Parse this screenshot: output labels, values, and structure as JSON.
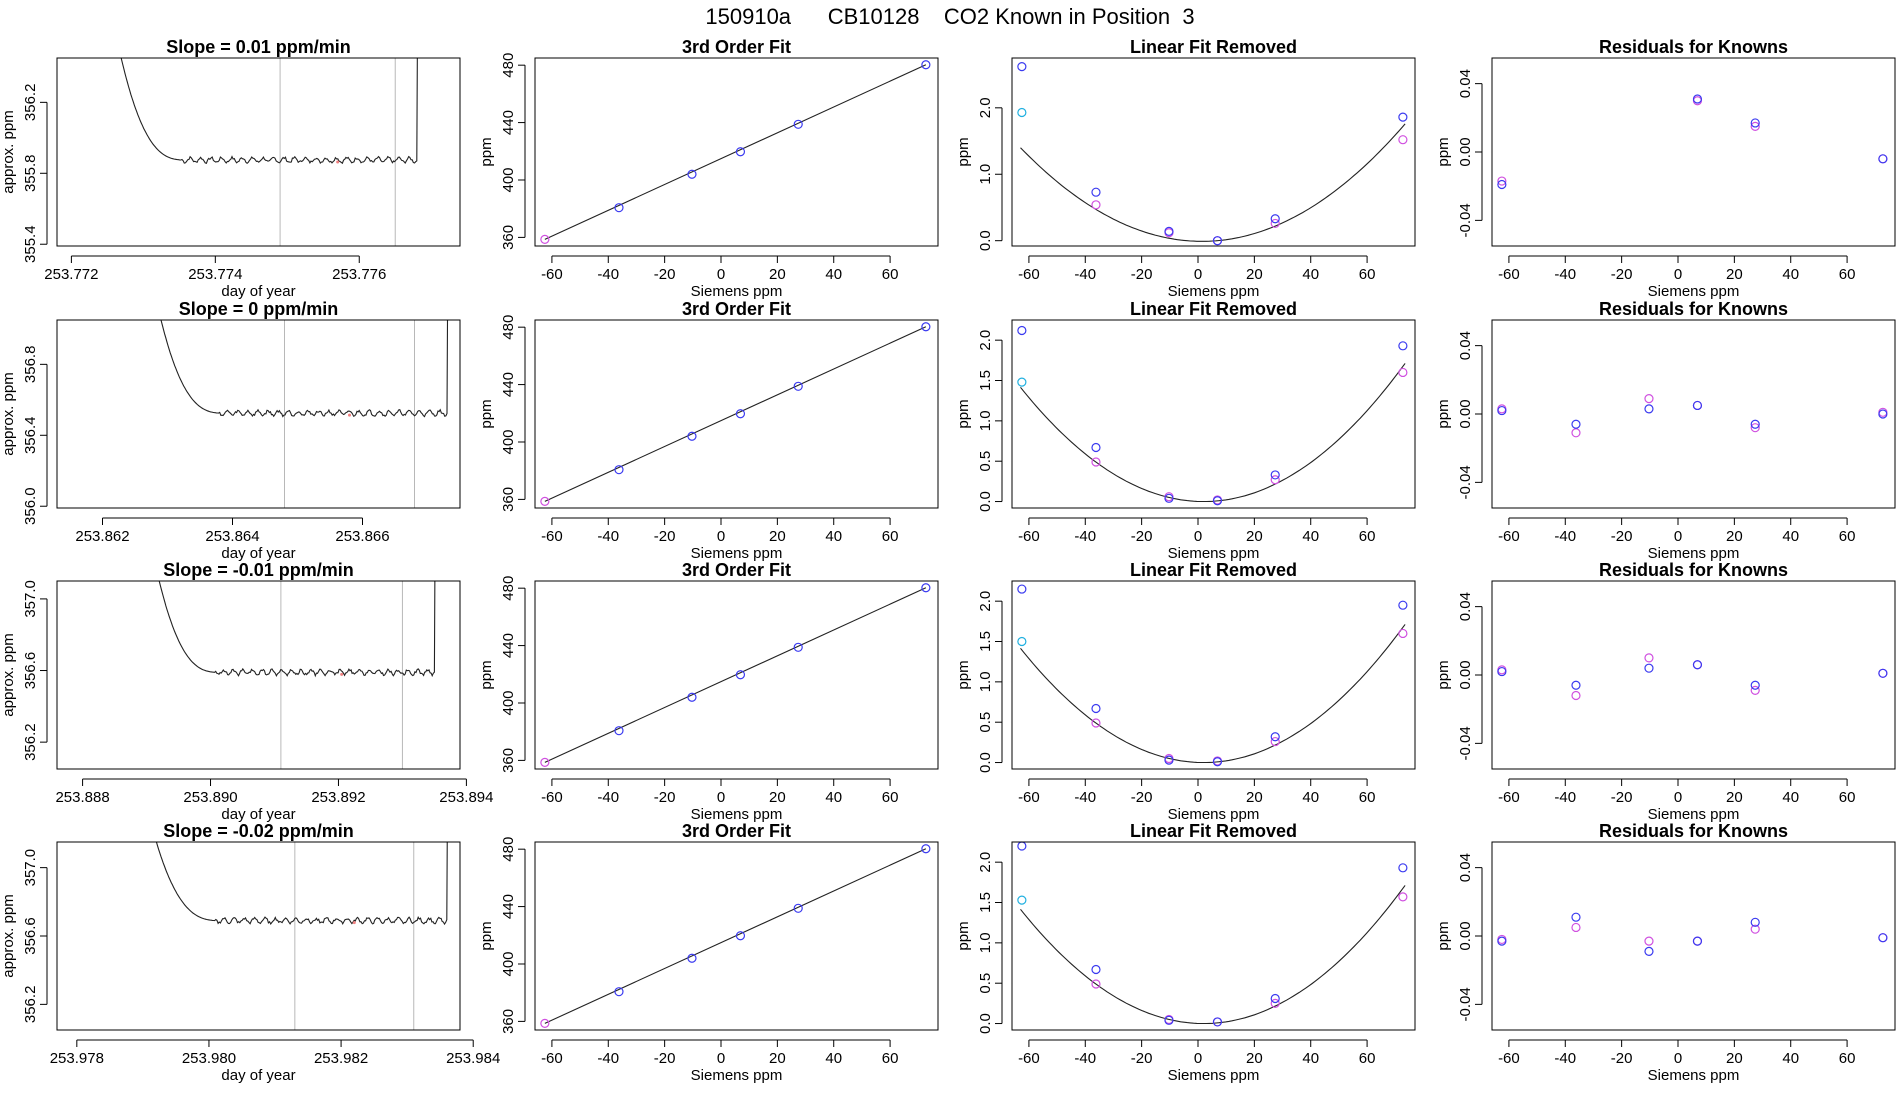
{
  "figure_title": "150910a      CB10128    CO2 Known in Position  3",
  "chart_data": [
    {
      "type": "line",
      "row": 0,
      "col": 0,
      "title": "Slope =  0.01  ppm/min",
      "xlabel": "day of year",
      "ylabel": "approx. ppm",
      "xlim": [
        253.7718,
        253.7774
      ],
      "ylim": [
        355.39,
        356.45
      ],
      "xticks": [
        253.772,
        253.774,
        253.776
      ],
      "yticks": [
        355.4,
        355.8,
        356.2
      ],
      "vlines": [
        253.7749,
        253.7765
      ],
      "baseline": 355.875,
      "trace_start": 253.7726,
      "trace_end": 253.7768,
      "high_value": 356.45
    },
    {
      "type": "scatter",
      "row": 0,
      "col": 1,
      "title": "3rd Order Fit",
      "xlabel": "Siemens ppm",
      "ylabel": "ppm",
      "xlim": [
        -66,
        77
      ],
      "ylim": [
        354,
        485
      ],
      "xticks": [
        -60,
        -40,
        -20,
        0,
        20,
        40,
        60
      ],
      "yticks": [
        360,
        400,
        440,
        480
      ],
      "points_x": [
        -62.5,
        -36.2,
        -10.3,
        6.9,
        27.4,
        72.7
      ],
      "points_y": [
        358.6,
        380.7,
        404.0,
        419.7,
        438.8,
        480.3
      ],
      "fit_line": [
        [
          -62.5,
          358.6
        ],
        [
          72.7,
          480.3
        ]
      ]
    },
    {
      "type": "scatter",
      "row": 0,
      "col": 2,
      "title": "Linear Fit Removed",
      "xlabel": "Siemens ppm",
      "ylabel": "ppm",
      "xlim": [
        -66,
        77
      ],
      "ylim": [
        -0.08,
        2.75
      ],
      "xticks": [
        -60,
        -40,
        -20,
        0,
        20,
        40,
        60
      ],
      "yticks": [
        0.0,
        1.0,
        2.0
      ],
      "curve": {
        "a": 0.00034,
        "h": 1.4,
        "c": -0.01
      },
      "blue_points": [
        [
          -62.5,
          2.62
        ],
        [
          -36.2,
          0.73
        ],
        [
          -10.3,
          0.14
        ],
        [
          6.9,
          0.0
        ],
        [
          27.4,
          0.33
        ],
        [
          72.7,
          1.86
        ]
      ],
      "magenta_points": [
        [
          -36.2,
          0.54
        ],
        [
          -10.3,
          0.12
        ],
        [
          6.9,
          0.0
        ],
        [
          27.4,
          0.26
        ],
        [
          72.7,
          1.52
        ]
      ],
      "cyan_points": [
        [
          -62.5,
          1.93
        ]
      ]
    },
    {
      "type": "scatter",
      "row": 0,
      "col": 3,
      "title": "Residuals for Knowns",
      "xlabel": "Siemens ppm",
      "ylabel": "ppm",
      "xlim": [
        -66,
        77
      ],
      "ylim": [
        -0.055,
        0.055
      ],
      "xticks": [
        -60,
        -40,
        -20,
        0,
        20,
        40,
        60
      ],
      "yticks": [
        -0.04,
        0.0,
        0.04
      ],
      "blue_points": [
        [
          -62.5,
          -0.019
        ],
        [
          6.9,
          0.031
        ],
        [
          27.4,
          0.017
        ],
        [
          72.7,
          -0.004
        ]
      ],
      "magenta_points": [
        [
          -62.5,
          -0.017
        ],
        [
          6.9,
          0.03
        ],
        [
          27.4,
          0.015
        ],
        [
          72.7,
          -0.004
        ]
      ]
    },
    {
      "type": "line",
      "row": 1,
      "col": 0,
      "title": "Slope =  0  ppm/min",
      "xlabel": "day of year",
      "ylabel": "approx. ppm",
      "xlim": [
        253.8613,
        253.8675
      ],
      "ylim": [
        355.99,
        357.05
      ],
      "xticks": [
        253.862,
        253.864,
        253.866
      ],
      "yticks": [
        356.0,
        356.4,
        356.8
      ],
      "vlines": [
        253.8648,
        253.8668
      ],
      "baseline": 356.525,
      "trace_start": 253.8628,
      "trace_end": 253.8673,
      "high_value": 357.05
    },
    {
      "type": "scatter",
      "row": 1,
      "col": 1,
      "title": "3rd Order Fit",
      "xlabel": "Siemens ppm",
      "ylabel": "ppm",
      "xlim": [
        -66,
        77
      ],
      "ylim": [
        354,
        485
      ],
      "xticks": [
        -60,
        -40,
        -20,
        0,
        20,
        40,
        60
      ],
      "yticks": [
        360,
        400,
        440,
        480
      ],
      "points_x": [
        -62.5,
        -36.2,
        -10.3,
        6.9,
        27.4,
        72.7
      ],
      "points_y": [
        358.6,
        380.7,
        404.0,
        419.7,
        438.8,
        480.3
      ],
      "fit_line": [
        [
          -62.5,
          358.6
        ],
        [
          72.7,
          480.3
        ]
      ]
    },
    {
      "type": "scatter",
      "row": 1,
      "col": 2,
      "title": "Linear Fit Removed",
      "xlabel": "Siemens ppm",
      "ylabel": "ppm",
      "xlim": [
        -66,
        77
      ],
      "ylim": [
        -0.08,
        2.25
      ],
      "xticks": [
        -60,
        -40,
        -20,
        0,
        20,
        40,
        60
      ],
      "yticks": [
        0.0,
        0.5,
        1.0,
        1.5,
        2.0
      ],
      "curve": {
        "a": 0.000335,
        "h": 2.0,
        "c": 0.0
      },
      "blue_points": [
        [
          -62.5,
          2.12
        ],
        [
          -36.2,
          0.67
        ],
        [
          -10.3,
          0.04
        ],
        [
          6.9,
          0.01
        ],
        [
          27.4,
          0.33
        ],
        [
          72.7,
          1.93
        ]
      ],
      "magenta_points": [
        [
          -36.2,
          0.49
        ],
        [
          -10.3,
          0.06
        ],
        [
          6.9,
          0.02
        ],
        [
          27.4,
          0.27
        ],
        [
          72.7,
          1.6
        ]
      ],
      "cyan_points": [
        [
          -62.5,
          1.48
        ]
      ]
    },
    {
      "type": "scatter",
      "row": 1,
      "col": 3,
      "title": "Residuals for Knowns",
      "xlabel": "Siemens ppm",
      "ylabel": "ppm",
      "xlim": [
        -66,
        77
      ],
      "ylim": [
        -0.055,
        0.055
      ],
      "xticks": [
        -60,
        -40,
        -20,
        0,
        20,
        40,
        60
      ],
      "yticks": [
        -0.04,
        0.0,
        0.04
      ],
      "blue_points": [
        [
          -62.5,
          0.002
        ],
        [
          -36.2,
          -0.006
        ],
        [
          -10.3,
          0.003
        ],
        [
          6.9,
          0.005
        ],
        [
          27.4,
          -0.006
        ],
        [
          72.7,
          0.0
        ]
      ],
      "magenta_points": [
        [
          -62.5,
          0.003
        ],
        [
          -36.2,
          -0.011
        ],
        [
          -10.3,
          0.009
        ],
        [
          6.9,
          0.005
        ],
        [
          27.4,
          -0.008
        ],
        [
          72.7,
          0.001
        ]
      ]
    },
    {
      "type": "line",
      "row": 2,
      "col": 0,
      "title": "Slope =  -0.01  ppm/min",
      "xlabel": "day of year",
      "ylabel": "approx. ppm",
      "xlim": [
        253.8876,
        253.8939
      ],
      "ylim": [
        356.05,
        357.1
      ],
      "xticks": [
        253.888,
        253.89,
        253.892,
        253.894
      ],
      "yticks": [
        356.2,
        356.6,
        357.0
      ],
      "vlines": [
        253.8911,
        253.893
      ],
      "baseline": 356.59,
      "trace_start": 253.8891,
      "trace_end": 253.8935,
      "high_value": 357.1
    },
    {
      "type": "scatter",
      "row": 2,
      "col": 1,
      "title": "3rd Order Fit",
      "xlabel": "Siemens ppm",
      "ylabel": "ppm",
      "xlim": [
        -66,
        77
      ],
      "ylim": [
        354,
        485
      ],
      "xticks": [
        -60,
        -40,
        -20,
        0,
        20,
        40,
        60
      ],
      "yticks": [
        360,
        400,
        440,
        480
      ],
      "points_x": [
        -62.5,
        -36.2,
        -10.3,
        6.9,
        27.4,
        72.7
      ],
      "points_y": [
        358.6,
        380.7,
        404.0,
        419.7,
        438.8,
        480.3
      ],
      "fit_line": [
        [
          -62.5,
          358.6
        ],
        [
          72.7,
          480.3
        ]
      ]
    },
    {
      "type": "scatter",
      "row": 2,
      "col": 2,
      "title": "Linear Fit Removed",
      "xlabel": "Siemens ppm",
      "ylabel": "ppm",
      "xlim": [
        -66,
        77
      ],
      "ylim": [
        -0.08,
        2.25
      ],
      "xticks": [
        -60,
        -40,
        -20,
        0,
        20,
        40,
        60
      ],
      "yticks": [
        0.0,
        0.5,
        1.0,
        1.5,
        2.0
      ],
      "curve": {
        "a": 0.000335,
        "h": 2.0,
        "c": 0.0
      },
      "blue_points": [
        [
          -62.5,
          2.15
        ],
        [
          -36.2,
          0.67
        ],
        [
          -10.3,
          0.03
        ],
        [
          6.9,
          0.01
        ],
        [
          27.4,
          0.32
        ],
        [
          72.7,
          1.95
        ]
      ],
      "magenta_points": [
        [
          -36.2,
          0.49
        ],
        [
          -10.3,
          0.05
        ],
        [
          6.9,
          0.02
        ],
        [
          27.4,
          0.26
        ],
        [
          72.7,
          1.6
        ]
      ],
      "cyan_points": [
        [
          -62.5,
          1.5
        ]
      ]
    },
    {
      "type": "scatter",
      "row": 2,
      "col": 3,
      "title": "Residuals for Knowns",
      "xlabel": "Siemens ppm",
      "ylabel": "ppm",
      "xlim": [
        -66,
        77
      ],
      "ylim": [
        -0.055,
        0.055
      ],
      "xticks": [
        -60,
        -40,
        -20,
        0,
        20,
        40,
        60
      ],
      "yticks": [
        -0.04,
        0.0,
        0.04
      ],
      "blue_points": [
        [
          -62.5,
          0.002
        ],
        [
          -36.2,
          -0.006
        ],
        [
          -10.3,
          0.004
        ],
        [
          6.9,
          0.006
        ],
        [
          27.4,
          -0.006
        ],
        [
          72.7,
          0.001
        ]
      ],
      "magenta_points": [
        [
          -62.5,
          0.003
        ],
        [
          -36.2,
          -0.012
        ],
        [
          -10.3,
          0.01
        ],
        [
          6.9,
          0.006
        ],
        [
          27.4,
          -0.009
        ],
        [
          72.7,
          0.001
        ]
      ]
    },
    {
      "type": "line",
      "row": 3,
      "col": 0,
      "title": "Slope =  -0.02  ppm/min",
      "xlabel": "day of year",
      "ylabel": "approx. ppm",
      "xlim": [
        253.9777,
        253.9838
      ],
      "ylim": [
        356.05,
        357.15
      ],
      "xticks": [
        253.978,
        253.98,
        253.982,
        253.984
      ],
      "yticks": [
        356.2,
        356.6,
        357.0
      ],
      "vlines": [
        253.9813,
        253.9831
      ],
      "baseline": 356.69,
      "trace_start": 253.9791,
      "trace_end": 253.9836,
      "high_value": 357.15
    },
    {
      "type": "scatter",
      "row": 3,
      "col": 1,
      "title": "3rd Order Fit",
      "xlabel": "Siemens ppm",
      "ylabel": "ppm",
      "xlim": [
        -66,
        77
      ],
      "ylim": [
        354,
        485
      ],
      "xticks": [
        -60,
        -40,
        -20,
        0,
        20,
        40,
        60
      ],
      "yticks": [
        360,
        400,
        440,
        480
      ],
      "points_x": [
        -62.5,
        -36.2,
        -10.3,
        6.9,
        27.4,
        72.7
      ],
      "points_y": [
        358.6,
        380.7,
        404.0,
        419.7,
        438.8,
        480.3
      ],
      "fit_line": [
        [
          -62.5,
          358.6
        ],
        [
          72.7,
          480.3
        ]
      ]
    },
    {
      "type": "scatter",
      "row": 3,
      "col": 2,
      "title": "Linear Fit Removed",
      "xlabel": "Siemens ppm",
      "ylabel": "ppm",
      "xlim": [
        -66,
        77
      ],
      "ylim": [
        -0.08,
        2.25
      ],
      "xticks": [
        -60,
        -40,
        -20,
        0,
        20,
        40,
        60
      ],
      "yticks": [
        0.0,
        0.5,
        1.0,
        1.5,
        2.0
      ],
      "curve": {
        "a": 0.000335,
        "h": 2.0,
        "c": 0.0
      },
      "blue_points": [
        [
          -62.5,
          2.2
        ],
        [
          -36.2,
          0.67
        ],
        [
          -10.3,
          0.04
        ],
        [
          6.9,
          0.02
        ],
        [
          27.4,
          0.31
        ],
        [
          72.7,
          1.93
        ]
      ],
      "magenta_points": [
        [
          -36.2,
          0.49
        ],
        [
          -10.3,
          0.05
        ],
        [
          6.9,
          0.02
        ],
        [
          27.4,
          0.25
        ],
        [
          72.7,
          1.57
        ]
      ],
      "cyan_points": [
        [
          -62.5,
          1.53
        ]
      ]
    },
    {
      "type": "scatter",
      "row": 3,
      "col": 3,
      "title": "Residuals for Knowns",
      "xlabel": "Siemens ppm",
      "ylabel": "ppm",
      "xlim": [
        -66,
        77
      ],
      "ylim": [
        -0.055,
        0.055
      ],
      "xticks": [
        -60,
        -40,
        -20,
        0,
        20,
        40,
        60
      ],
      "yticks": [
        -0.04,
        0.0,
        0.04
      ],
      "blue_points": [
        [
          -62.5,
          -0.003
        ],
        [
          -36.2,
          0.011
        ],
        [
          -10.3,
          -0.009
        ],
        [
          6.9,
          -0.003
        ],
        [
          27.4,
          0.008
        ],
        [
          72.7,
          -0.001
        ]
      ],
      "magenta_points": [
        [
          -62.5,
          -0.002
        ],
        [
          -36.2,
          0.005
        ],
        [
          -10.3,
          -0.003
        ],
        [
          6.9,
          -0.003
        ],
        [
          27.4,
          0.004
        ],
        [
          72.7,
          -0.001
        ]
      ]
    }
  ],
  "colors": {
    "blue_points": "#3a3af0",
    "magenta_points": "#d050e0",
    "cyan_points": "#20b0e0",
    "lines": "#222222",
    "vlines": "#b8b8b8",
    "pink_marks": "#f08080"
  }
}
